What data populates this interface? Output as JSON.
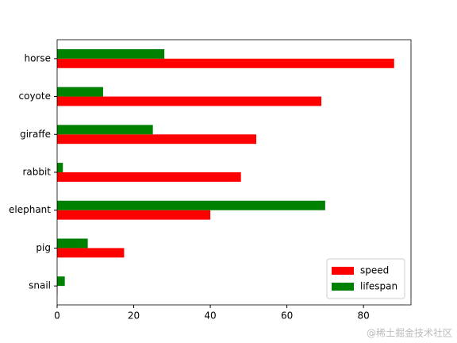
{
  "chart_data": {
    "type": "barh",
    "categories": [
      "snail",
      "pig",
      "elephant",
      "rabbit",
      "giraffe",
      "coyote",
      "horse"
    ],
    "series": [
      {
        "name": "speed",
        "color": "#ff0000",
        "values": [
          0.1,
          17.5,
          40,
          48,
          52,
          69,
          88
        ]
      },
      {
        "name": "lifespan",
        "color": "#008000",
        "values": [
          2,
          8,
          70,
          1.5,
          25,
          12,
          28
        ]
      }
    ],
    "xlim": [
      0,
      92.4
    ],
    "xticks": [
      0,
      20,
      40,
      60,
      80
    ],
    "legend": "lower right"
  },
  "watermark": "@稀土掘金技术社区"
}
